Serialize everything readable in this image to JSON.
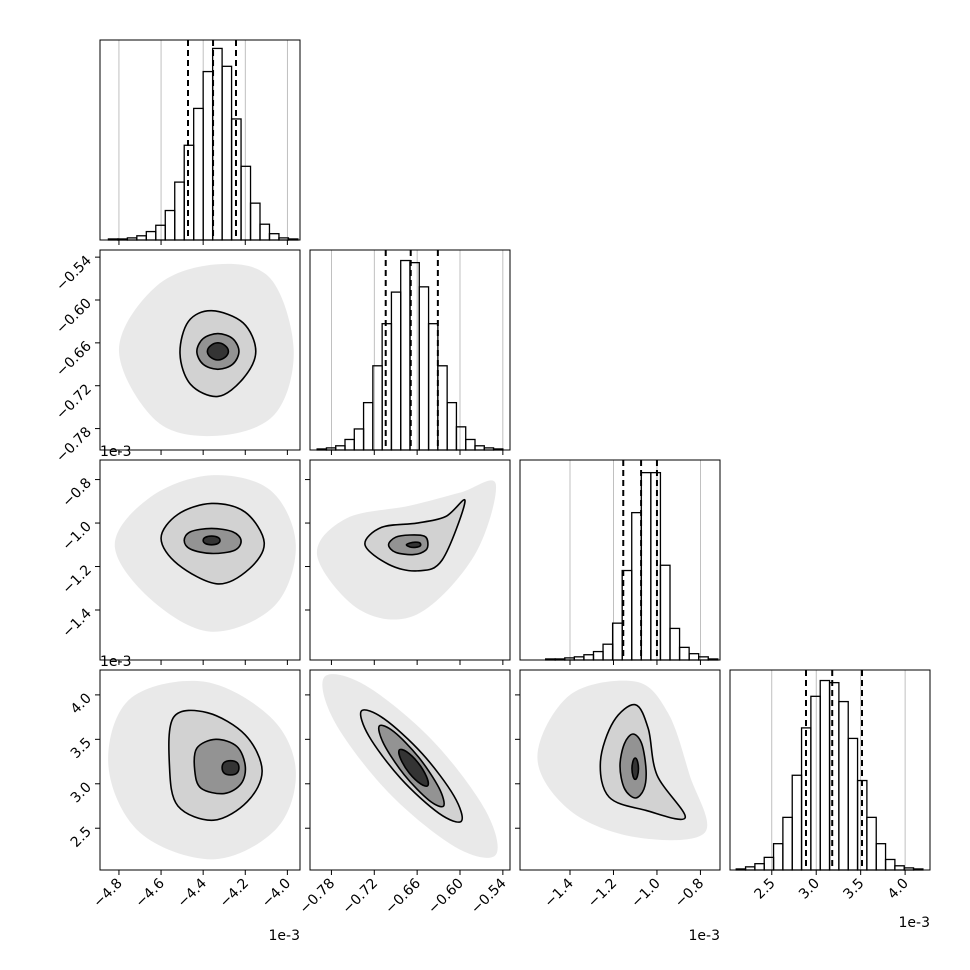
{
  "chart_data": {
    "type": "corner",
    "params": [
      {
        "lim": [
          -4.89,
          -3.94
        ],
        "ticks": [
          {
            "value": -4.8,
            "label": "−4.8"
          },
          {
            "value": -4.6,
            "label": "−4.6"
          },
          {
            "value": -4.4,
            "label": "−4.4"
          },
          {
            "value": -4.2,
            "label": "−4.2"
          },
          {
            "value": -4.0,
            "label": "−4.0"
          }
        ],
        "offset_label": "1e-3"
      },
      {
        "lim": [
          -0.81,
          -0.53
        ],
        "ticks": [
          {
            "value": -0.78,
            "label": "−0.78"
          },
          {
            "value": -0.72,
            "label": "−0.72"
          },
          {
            "value": -0.66,
            "label": "−0.66"
          },
          {
            "value": -0.6,
            "label": "−0.60"
          },
          {
            "value": -0.54,
            "label": "−0.54"
          }
        ]
      },
      {
        "lim": [
          -1.63,
          -0.71
        ],
        "ticks": [
          {
            "value": -1.4,
            "label": "−1.4"
          },
          {
            "value": -1.2,
            "label": "−1.2"
          },
          {
            "value": -1.0,
            "label": "−1.0"
          },
          {
            "value": -0.8,
            "label": "−0.8"
          }
        ],
        "offset_label": "1e-3"
      },
      {
        "lim": [
          2.03,
          4.28
        ],
        "ticks": [
          2.5,
          {
            "value": 3,
            "label": "3.0"
          },
          3.5,
          {
            "value": 4,
            "label": "4.0"
          }
        ],
        "offset_label": "1e-3"
      }
    ],
    "histograms": [
      {
        "ylim": [
          0,
          190
        ],
        "bins": [
          -4.85,
          -4.805,
          -4.76,
          -4.715,
          -4.67,
          -4.625,
          -4.58,
          -4.535,
          -4.49,
          -4.445,
          -4.4,
          -4.355,
          -4.31,
          -4.265,
          -4.22,
          -4.175,
          -4.13,
          -4.085,
          -4.04,
          -3.995,
          -3.95
        ],
        "counts": [
          1,
          1,
          2,
          4,
          8,
          14,
          28,
          55,
          90,
          125,
          160,
          182,
          165,
          115,
          70,
          35,
          15,
          6,
          2,
          1
        ],
        "quantiles": [
          -4.472,
          -4.353,
          -4.244
        ]
      },
      {
        "ylim": [
          0,
          190
        ],
        "bins": [
          -0.8,
          -0.787,
          -0.774,
          -0.761,
          -0.748,
          -0.735,
          -0.722,
          -0.709,
          -0.696,
          -0.683,
          -0.67,
          -0.657,
          -0.644,
          -0.631,
          -0.618,
          -0.605,
          -0.592,
          -0.579,
          -0.566,
          -0.553,
          -0.54
        ],
        "counts": [
          1,
          2,
          4,
          10,
          20,
          45,
          80,
          120,
          150,
          180,
          178,
          155,
          120,
          80,
          45,
          22,
          10,
          4,
          2,
          1
        ],
        "quantiles": [
          -0.704,
          -0.669,
          -0.631
        ]
      },
      {
        "ylim": [
          0,
          190
        ],
        "bins": [
          -1.6,
          -1.556,
          -1.512,
          -1.468,
          -1.424,
          -1.38,
          -1.336,
          -1.292,
          -1.248,
          -1.204,
          -1.16,
          -1.116,
          -1.072,
          -1.028,
          -0.984,
          -0.94,
          -0.896,
          -0.852,
          -0.808,
          -0.764,
          -0.72
        ],
        "counts": [
          0,
          0,
          1,
          1,
          2,
          3,
          5,
          8,
          15,
          35,
          85,
          140,
          178,
          178,
          90,
          30,
          12,
          6,
          3,
          1
        ],
        "quantiles": [
          -1.155,
          -1.073,
          -1.0
        ]
      },
      {
        "ylim": [
          0,
          190
        ],
        "bins": [
          2.1,
          2.205,
          2.31,
          2.415,
          2.52,
          2.625,
          2.73,
          2.835,
          2.94,
          3.045,
          3.15,
          3.255,
          3.36,
          3.465,
          3.57,
          3.675,
          3.78,
          3.885,
          3.99,
          4.095,
          4.2
        ],
        "counts": [
          1,
          3,
          6,
          12,
          25,
          50,
          90,
          135,
          165,
          180,
          178,
          160,
          125,
          85,
          50,
          25,
          10,
          4,
          2,
          1
        ],
        "quantiles": [
          2.885,
          3.18,
          3.515
        ]
      }
    ],
    "panels": [
      {
        "contours": [
          [
            [
              -3.97,
              -0.67
            ],
            [
              -4.08,
              -0.57
            ],
            [
              -4.33,
              -0.55
            ],
            [
              -4.62,
              -0.58
            ],
            [
              -4.8,
              -0.67
            ],
            [
              -4.62,
              -0.77
            ],
            [
              -4.33,
              -0.79
            ],
            [
              -4.06,
              -0.76
            ]
          ],
          [
            [
              -4.15,
              -0.672
            ],
            [
              -4.21,
              -0.632
            ],
            [
              -4.36,
              -0.615
            ],
            [
              -4.47,
              -0.63
            ],
            [
              -4.51,
              -0.675
            ],
            [
              -4.46,
              -0.718
            ],
            [
              -4.33,
              -0.735
            ],
            [
              -4.21,
              -0.71
            ]
          ],
          [
            [
              -4.23,
              -0.672
            ],
            [
              -4.26,
              -0.654
            ],
            [
              -4.33,
              -0.647
            ],
            [
              -4.4,
              -0.654
            ],
            [
              -4.43,
              -0.672
            ],
            [
              -4.4,
              -0.69
            ],
            [
              -4.33,
              -0.697
            ],
            [
              -4.26,
              -0.69
            ]
          ],
          [
            [
              -4.28,
              -0.672
            ],
            [
              -4.295,
              -0.664
            ],
            [
              -4.33,
              -0.66
            ],
            [
              -4.365,
              -0.664
            ],
            [
              -4.38,
              -0.672
            ],
            [
              -4.365,
              -0.68
            ],
            [
              -4.33,
              -0.684
            ],
            [
              -4.295,
              -0.68
            ]
          ]
        ]
      },
      {
        "contours": [
          [
            [
              -3.96,
              -1.1
            ],
            [
              -4.08,
              -0.85
            ],
            [
              -4.36,
              -0.78
            ],
            [
              -4.65,
              -0.88
            ],
            [
              -4.82,
              -1.1
            ],
            [
              -4.65,
              -1.35
            ],
            [
              -4.36,
              -1.5
            ],
            [
              -4.06,
              -1.38
            ]
          ],
          [
            [
              -4.11,
              -1.09
            ],
            [
              -4.2,
              -0.95
            ],
            [
              -4.36,
              -0.91
            ],
            [
              -4.52,
              -0.96
            ],
            [
              -4.6,
              -1.07
            ],
            [
              -4.52,
              -1.19
            ],
            [
              -4.33,
              -1.28
            ],
            [
              -4.18,
              -1.21
            ]
          ],
          [
            [
              -4.22,
              -1.08
            ],
            [
              -4.26,
              -1.04
            ],
            [
              -4.36,
              -1.025
            ],
            [
              -4.46,
              -1.04
            ],
            [
              -4.49,
              -1.08
            ],
            [
              -4.46,
              -1.12
            ],
            [
              -4.36,
              -1.14
            ],
            [
              -4.25,
              -1.125
            ]
          ],
          [
            [
              -4.32,
              -1.08
            ],
            [
              -4.33,
              -1.066
            ],
            [
              -4.36,
              -1.06
            ],
            [
              -4.39,
              -1.066
            ],
            [
              -4.4,
              -1.08
            ],
            [
              -4.39,
              -1.094
            ],
            [
              -4.36,
              -1.1
            ],
            [
              -4.33,
              -1.094
            ]
          ]
        ]
      },
      {
        "contours": [
          [
            [
              -0.55,
              -0.82
            ],
            [
              -0.6,
              -0.86
            ],
            [
              -0.67,
              -0.92
            ],
            [
              -0.76,
              -0.98
            ],
            [
              -0.8,
              -1.15
            ],
            [
              -0.74,
              -1.4
            ],
            [
              -0.66,
              -1.42
            ],
            [
              -0.58,
              -1.15
            ]
          ],
          [
            [
              -0.593,
              -0.9
            ],
            [
              -0.62,
              -0.97
            ],
            [
              -0.66,
              -1.0
            ],
            [
              -0.71,
              -1.02
            ],
            [
              -0.733,
              -1.1
            ],
            [
              -0.7,
              -1.19
            ],
            [
              -0.66,
              -1.22
            ],
            [
              -0.625,
              -1.17
            ]
          ],
          [
            [
              -0.645,
              -1.09
            ],
            [
              -0.65,
              -1.06
            ],
            [
              -0.67,
              -1.055
            ],
            [
              -0.69,
              -1.065
            ],
            [
              -0.7,
              -1.1
            ],
            [
              -0.69,
              -1.135
            ],
            [
              -0.665,
              -1.145
            ],
            [
              -0.648,
              -1.125
            ]
          ],
          [
            [
              -0.655,
              -1.1
            ],
            [
              -0.657,
              -1.09
            ],
            [
              -0.663,
              -1.088
            ],
            [
              -0.67,
              -1.092
            ],
            [
              -0.675,
              -1.1
            ],
            [
              -0.67,
              -1.11
            ],
            [
              -0.663,
              -1.112
            ],
            [
              -0.657,
              -1.108
            ]
          ]
        ]
      },
      {
        "contours": [
          [
            [
              -3.96,
              3.15
            ],
            [
              -4.08,
              3.75
            ],
            [
              -4.4,
              4.15
            ],
            [
              -4.75,
              3.95
            ],
            [
              -4.85,
              3.2
            ],
            [
              -4.7,
              2.45
            ],
            [
              -4.35,
              2.15
            ],
            [
              -4.05,
              2.5
            ]
          ],
          [
            [
              -4.12,
              3.15
            ],
            [
              -4.2,
              3.55
            ],
            [
              -4.38,
              3.8
            ],
            [
              -4.54,
              3.75
            ],
            [
              -4.56,
              3.2
            ],
            [
              -4.52,
              2.75
            ],
            [
              -4.35,
              2.59
            ],
            [
              -4.19,
              2.8
            ]
          ],
          [
            [
              -4.2,
              3.2
            ],
            [
              -4.24,
              3.42
            ],
            [
              -4.34,
              3.5
            ],
            [
              -4.43,
              3.4
            ],
            [
              -4.44,
              3.15
            ],
            [
              -4.41,
              2.95
            ],
            [
              -4.3,
              2.89
            ],
            [
              -4.22,
              3.0
            ]
          ],
          [
            [
              -4.23,
              3.18
            ],
            [
              -4.24,
              3.24
            ],
            [
              -4.27,
              3.26
            ],
            [
              -4.3,
              3.24
            ],
            [
              -4.31,
              3.18
            ],
            [
              -4.3,
              3.12
            ],
            [
              -4.27,
              3.1
            ],
            [
              -4.24,
              3.12
            ]
          ]
        ]
      },
      {
        "contours": [
          [
            [
              -0.55,
              2.2
            ],
            [
              -0.565,
              2.71
            ],
            [
              -0.64,
              3.5
            ],
            [
              -0.733,
              4.11
            ],
            [
              -0.79,
              4.2
            ],
            [
              -0.775,
              3.69
            ],
            [
              -0.7,
              2.9
            ],
            [
              -0.607,
              2.29
            ]
          ],
          [
            [
              -0.598,
              2.58
            ],
            [
              -0.6085,
              2.864
            ],
            [
              -0.653,
              3.34
            ],
            [
              -0.7065,
              3.732
            ],
            [
              -0.738,
              3.82
            ],
            [
              -0.7275,
              3.536
            ],
            [
              -0.683,
              3.06
            ],
            [
              -0.6295,
              2.668
            ]
          ],
          [
            [
              -0.623,
              2.75
            ],
            [
              -0.6295,
              2.955
            ],
            [
              -0.658,
              3.3
            ],
            [
              -0.6925,
              3.585
            ],
            [
              -0.713,
              3.65
            ],
            [
              -0.7065,
              3.445
            ],
            [
              -0.678,
              3.1
            ],
            [
              -0.6435,
              2.815
            ]
          ],
          [
            [
              -0.645,
              2.98
            ],
            [
              -0.647,
              3.082
            ],
            [
              -0.659,
              3.24
            ],
            [
              -0.675,
              3.362
            ],
            [
              -0.685,
              3.38
            ],
            [
              -0.683,
              3.278
            ],
            [
              -0.671,
              3.12
            ],
            [
              -0.655,
              2.998
            ]
          ]
        ]
      },
      {
        "contours": [
          [
            [
              -0.85,
              3.1
            ],
            [
              -0.95,
              3.8
            ],
            [
              -1.1,
              4.15
            ],
            [
              -1.4,
              4.0
            ],
            [
              -1.55,
              3.3
            ],
            [
              -1.4,
              2.7
            ],
            [
              -1.1,
              2.4
            ],
            [
              -0.78,
              2.45
            ]
          ],
          [
            [
              -1.0,
              3.1
            ],
            [
              -1.04,
              3.62
            ],
            [
              -1.1,
              3.89
            ],
            [
              -1.2,
              3.7
            ],
            [
              -1.26,
              3.25
            ],
            [
              -1.22,
              2.85
            ],
            [
              -1.05,
              2.7
            ],
            [
              -0.87,
              2.62
            ]
          ],
          [
            [
              -1.05,
              3.15
            ],
            [
              -1.07,
              3.45
            ],
            [
              -1.11,
              3.56
            ],
            [
              -1.15,
              3.45
            ],
            [
              -1.17,
              3.2
            ],
            [
              -1.15,
              2.95
            ],
            [
              -1.1,
              2.84
            ],
            [
              -1.06,
              2.94
            ]
          ],
          [
            [
              -1.085,
              3.17
            ],
            [
              -1.09,
              3.255
            ],
            [
              -1.1,
              3.29
            ],
            [
              -1.11,
              3.255
            ],
            [
              -1.115,
              3.17
            ],
            [
              -1.11,
              3.085
            ],
            [
              -1.1,
              3.05
            ],
            [
              -1.09,
              3.085
            ]
          ]
        ]
      }
    ],
    "grid": true
  }
}
